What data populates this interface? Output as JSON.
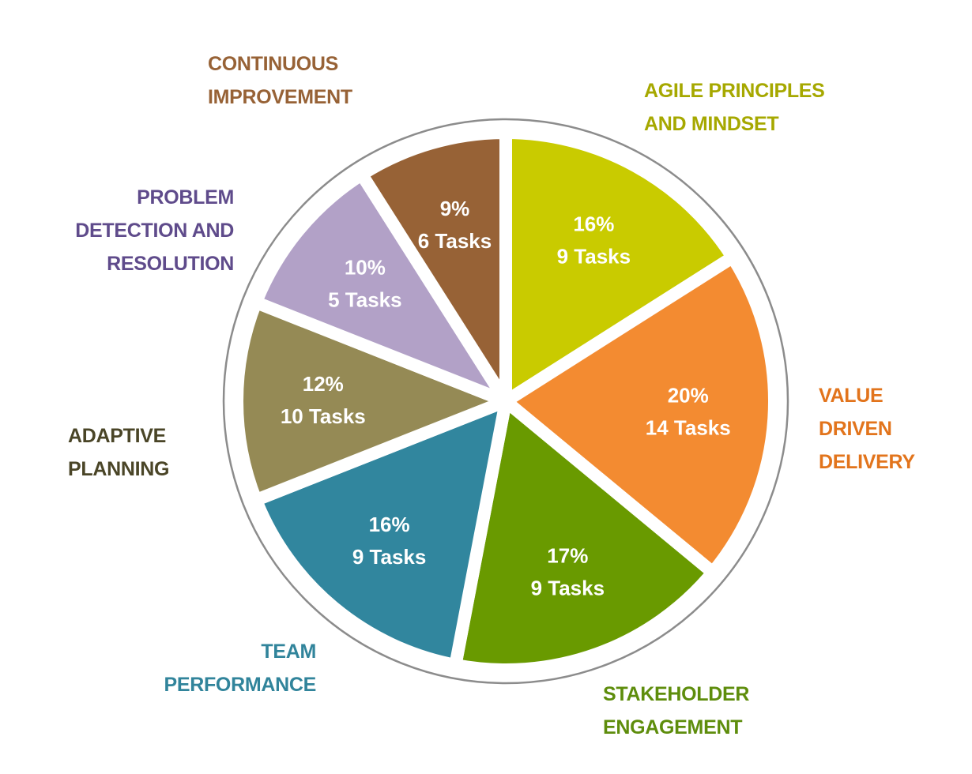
{
  "chart_data": {
    "type": "pie",
    "start": "top",
    "direction": "clockwise",
    "slices": [
      {
        "name": "AGILE PRINCIPLES AND MINDSET",
        "lines": [
          "AGILE PRINCIPLES",
          "AND MINDSET"
        ],
        "percent": 16,
        "percent_label": "16%",
        "tasks_label": "9 Tasks",
        "color": "#c9cb00",
        "label_color": "#a6a800"
      },
      {
        "name": "VALUE DRIVEN DELIVERY",
        "lines": [
          "VALUE",
          "DRIVEN",
          "DELIVERY"
        ],
        "percent": 20,
        "percent_label": "20%",
        "tasks_label": "14 Tasks",
        "color": "#f38b31",
        "label_color": "#e2741c"
      },
      {
        "name": "STAKEHOLDER ENGAGEMENT",
        "lines": [
          "STAKEHOLDER",
          "ENGAGEMENT"
        ],
        "percent": 17,
        "percent_label": "17%",
        "tasks_label": "9 Tasks",
        "color": "#699a00",
        "label_color": "#5e8d0c"
      },
      {
        "name": "TEAM PERFORMANCE",
        "lines": [
          "TEAM",
          "PERFORMANCE"
        ],
        "percent": 16,
        "percent_label": "16%",
        "tasks_label": "9 Tasks",
        "color": "#31869e",
        "label_color": "#31849b"
      },
      {
        "name": "ADAPTIVE PLANNING",
        "lines": [
          "ADAPTIVE",
          "PLANNING"
        ],
        "percent": 12,
        "percent_label": "12%",
        "tasks_label": "10 Tasks",
        "color": "#958a55",
        "label_color": "#4a4527"
      },
      {
        "name": "PROBLEM DETECTION AND RESOLUTION",
        "lines": [
          "PROBLEM",
          "DETECTION AND",
          "RESOLUTION"
        ],
        "percent": 10,
        "percent_label": "10%",
        "tasks_label": "5 Tasks",
        "color": "#b2a1c7",
        "label_color": "#5f4b8b"
      },
      {
        "name": "CONTINUOUS IMPROVEMENT",
        "lines": [
          "CONTINUOUS",
          "IMPROVEMENT"
        ],
        "percent": 9,
        "percent_label": "9%",
        "tasks_label": "6 Tasks",
        "color": "#976236",
        "label_color": "#976236"
      }
    ],
    "outline_color": "#8c8c8c"
  }
}
